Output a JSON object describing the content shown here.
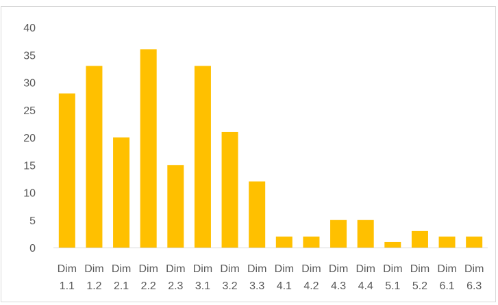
{
  "chart_data": {
    "type": "bar",
    "title": "",
    "xlabel": "",
    "ylabel": "",
    "ylim": [
      0,
      40
    ],
    "yticks": [
      "0",
      "5",
      "10",
      "15",
      "20",
      "25",
      "30",
      "35",
      "40"
    ],
    "categories": [
      [
        "Dim",
        "1.1"
      ],
      [
        "Dim",
        "1.2"
      ],
      [
        "Dim",
        "2.1"
      ],
      [
        "Dim",
        "2.2"
      ],
      [
        "Dim",
        "2.3"
      ],
      [
        "Dim",
        "3.1"
      ],
      [
        "Dim",
        "3.2"
      ],
      [
        "Dim",
        "3.3"
      ],
      [
        "Dim",
        "4.1"
      ],
      [
        "Dim",
        "4.2"
      ],
      [
        "Dim",
        "4.3"
      ],
      [
        "Dim",
        "4.4"
      ],
      [
        "Dim",
        "5.1"
      ],
      [
        "Dim",
        "5.2"
      ],
      [
        "Dim",
        "6.1"
      ],
      [
        "Dim",
        "6.3"
      ]
    ],
    "values": [
      28,
      33,
      20,
      36,
      15,
      33,
      21,
      12,
      2,
      2,
      5,
      5,
      1,
      3,
      2,
      2
    ],
    "bar_color": "#FFC000",
    "grid": false,
    "legend": "none"
  }
}
